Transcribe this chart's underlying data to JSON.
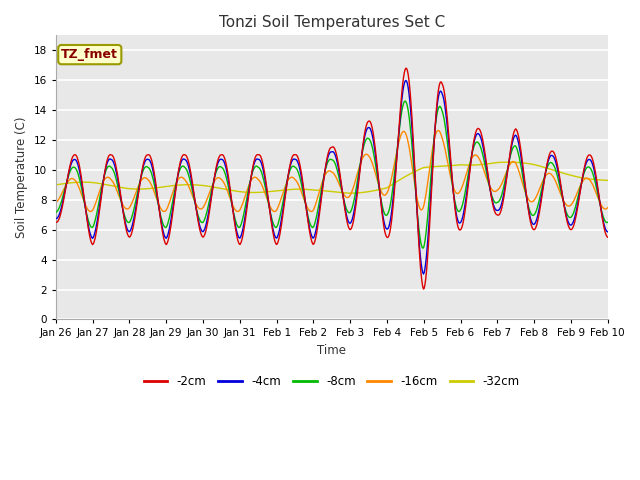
{
  "title": "Tonzi Soil Temperatures Set C",
  "xlabel": "Time",
  "ylabel": "Soil Temperature (C)",
  "ylim": [
    0,
    19
  ],
  "yticks": [
    0,
    2,
    4,
    6,
    8,
    10,
    12,
    14,
    16,
    18
  ],
  "x_labels": [
    "Jan 26",
    "Jan 27",
    "Jan 28",
    "Jan 29",
    "Jan 30",
    "Jan 31",
    "Feb 1",
    "Feb 2",
    "Feb 3",
    "Feb 4",
    "Feb 5",
    "Feb 6",
    "Feb 7",
    "Feb 8",
    "Feb 9",
    "Feb 10"
  ],
  "series_labels": [
    "-2cm",
    "-4cm",
    "-8cm",
    "-16cm",
    "-32cm"
  ],
  "series_colors": [
    "#dd0000",
    "#0000dd",
    "#00bb00",
    "#ff8800",
    "#cccc00"
  ],
  "annotation_text": "TZ_fmet",
  "annotation_color": "#880000",
  "annotation_bg": "#ffffcc",
  "annotation_border": "#999900",
  "plot_bg": "#e8e8e8",
  "fig_bg": "#ffffff",
  "grid_color": "#ffffff",
  "linewidth": 1.0
}
